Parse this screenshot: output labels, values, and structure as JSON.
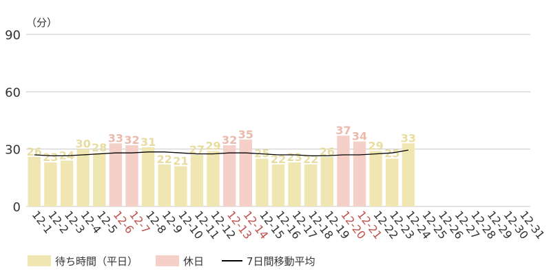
{
  "chart_data": {
    "type": "bar",
    "y_unit": "（分）",
    "ylim": [
      0,
      90
    ],
    "yticks": [
      "0",
      "30",
      "60",
      "90"
    ],
    "grid": true,
    "legend_position": "bottom-left",
    "categories": [
      "12-1",
      "12-2",
      "12-3",
      "12-4",
      "12-5",
      "12-6",
      "12-7",
      "12-8",
      "12-9",
      "12-10",
      "12-11",
      "12-12",
      "12-13",
      "12-14",
      "12-15",
      "12-16",
      "12-17",
      "12-18",
      "12-19",
      "12-20",
      "12-21",
      "12-22",
      "12-23",
      "12-24",
      "12-25",
      "12-26",
      "12-27",
      "12-28",
      "12-29",
      "12-30",
      "12-31"
    ],
    "holiday_categories": [
      "12-6",
      "12-7",
      "12-13",
      "12-14",
      "12-20",
      "12-21"
    ],
    "series": [
      {
        "name": "待ち時間（平日）",
        "type": "bar",
        "color": "#f0e6b2",
        "label_color": "#e8dca0",
        "values": [
          26,
          23,
          24,
          30,
          28,
          null,
          null,
          31,
          22,
          21,
          27,
          29,
          null,
          null,
          25,
          22,
          23,
          22,
          26,
          null,
          null,
          29,
          25,
          33,
          null,
          null,
          null,
          null,
          null,
          null,
          null
        ]
      },
      {
        "name": "休日",
        "type": "bar",
        "color": "#f4d0c8",
        "label_color": "#ecb9ad",
        "values": [
          null,
          null,
          null,
          null,
          null,
          33,
          32,
          null,
          null,
          null,
          null,
          null,
          32,
          35,
          null,
          null,
          null,
          null,
          null,
          37,
          34,
          null,
          null,
          null,
          null,
          null,
          null,
          null,
          null,
          null,
          null
        ]
      },
      {
        "name": "7日間移動平均",
        "type": "line",
        "color": "#000000",
        "values": [
          27,
          26.5,
          26.5,
          27,
          27.5,
          28,
          28,
          28.5,
          28.5,
          28,
          27.5,
          27.5,
          28,
          28,
          27.5,
          27,
          27,
          26.5,
          26.5,
          27,
          27,
          27.5,
          28,
          29.5,
          null,
          null,
          null,
          null,
          null,
          null,
          null
        ]
      }
    ],
    "colors": {
      "grid": "#c8c8c8",
      "axis_text": "#333333",
      "holiday_tick": "#c0504d"
    }
  },
  "legend": {
    "weekday": "待ち時間（平日）",
    "holiday": "休日",
    "moving_average": "7日間移動平均"
  }
}
